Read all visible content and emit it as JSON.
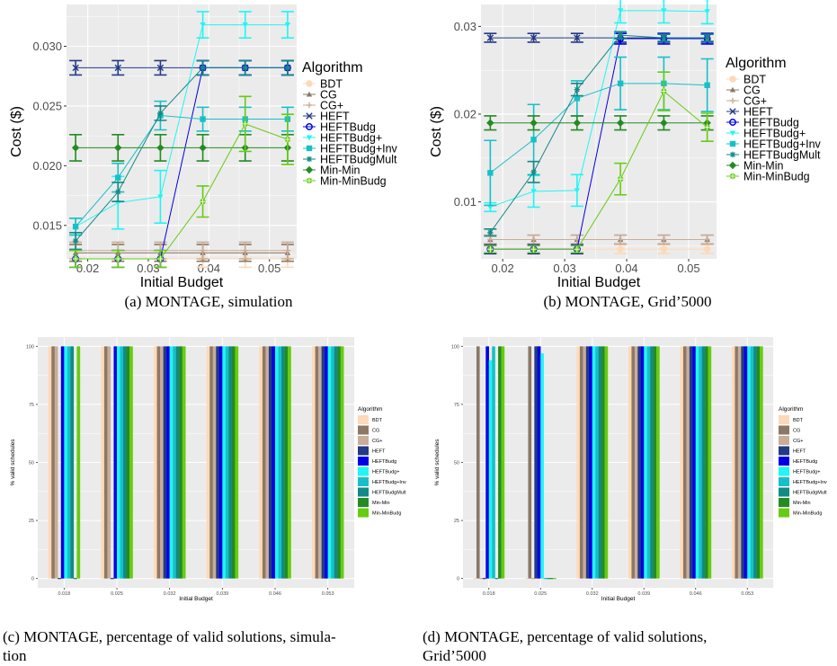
{
  "captions": {
    "a": "(a) MONTAGE, simulation",
    "b": "(b) MONTAGE, Grid’5000",
    "c_line1": "(c) MONTAGE, percentage of valid solutions, simula-",
    "c_line2": "tion",
    "d_line1": "(d)  MONTAGE,  percentage  of  valid  solutions,",
    "d_line2": "Grid’5000"
  },
  "colors": {
    "BDT": "#fdd9b9",
    "CG": "#8c7866",
    "CG+": "#c8ad98",
    "HEFT": "#243a85",
    "HEFTBudg": "#0000e6",
    "HEFTBudg+": "#22f5f5",
    "HEFTBudg+Inv": "#17c0c8",
    "HEFTBudgMult": "#128a86",
    "Min-Min": "#238b23",
    "Min-MinBudg": "#66cc11",
    "panel_bg": "#ebebeb",
    "grid": "#ffffff"
  },
  "chart_data": [
    {
      "id": "a",
      "type": "line",
      "xlabel": "Initial Budget",
      "ylabel": "Cost ($)",
      "xlim": [
        0.0165,
        0.0545
      ],
      "ylim": [
        0.0122,
        0.0335
      ],
      "xticks": [
        0.02,
        0.03,
        0.04,
        0.05
      ],
      "xtick_labels": [
        "0.02",
        "0.03",
        "0.04",
        "0.05"
      ],
      "yticks": [
        0.015,
        0.02,
        0.025,
        0.03
      ],
      "ytick_labels": [
        "0.015",
        "0.020",
        "0.025",
        "0.030"
      ],
      "legend_title": "Algorithm",
      "legend_position": "right",
      "x": [
        0.018,
        0.025,
        0.032,
        0.039,
        0.046,
        0.053
      ],
      "series": [
        {
          "name": "BDT",
          "values": [
            0.0122,
            0.0122,
            0.0122,
            0.0122,
            0.0122,
            0.0122
          ],
          "err": [
            0.0007,
            0.0007,
            0.0007,
            0.0007,
            0.0007,
            0.0007
          ]
        },
        {
          "name": "CG",
          "values": [
            0.0127,
            0.0127,
            0.0127,
            0.0127,
            0.0127,
            0.0127
          ],
          "err": [
            0.0007,
            0.0007,
            0.0007,
            0.0007,
            0.0007,
            0.0007
          ]
        },
        {
          "name": "CG+",
          "values": [
            0.0129,
            0.0129,
            0.0129,
            0.0129,
            0.0129,
            0.0129
          ],
          "err": [
            0.0007,
            0.0007,
            0.0007,
            0.0007,
            0.0007,
            0.0007
          ]
        },
        {
          "name": "HEFT",
          "values": [
            0.0282,
            0.0282,
            0.0282,
            0.0282,
            0.0282,
            0.0282
          ],
          "err": [
            0.0006,
            0.0006,
            0.0006,
            0.0006,
            0.0006,
            0.0006
          ]
        },
        {
          "name": "HEFTBudg",
          "values": [
            0.0122,
            0.0122,
            0.0122,
            0.0282,
            0.0282,
            0.0282
          ],
          "err": [
            0.0007,
            0.0007,
            0.0007,
            0.0006,
            0.0006,
            0.0006
          ]
        },
        {
          "name": "HEFTBudg+",
          "values": [
            0.0149,
            0.0169,
            0.0174,
            0.0318,
            0.0318,
            0.0318
          ],
          "err": [
            0.0007,
            0.0022,
            0.0022,
            0.0011,
            0.0011,
            0.0011
          ]
        },
        {
          "name": "HEFTBudg+Inv",
          "values": [
            0.0149,
            0.019,
            0.0242,
            0.0239,
            0.0239,
            0.0239
          ],
          "err": [
            0.0007,
            0.0012,
            0.0012,
            0.001,
            0.001,
            0.001
          ]
        },
        {
          "name": "HEFTBudgMult",
          "values": [
            0.0137,
            0.0178,
            0.0244,
            0.0282,
            0.0282,
            0.0282
          ],
          "err": [
            0.0007,
            0.0008,
            0.0006,
            0.0006,
            0.0006,
            0.0006
          ]
        },
        {
          "name": "Min-Min",
          "values": [
            0.0215,
            0.0215,
            0.0215,
            0.0215,
            0.0215,
            0.0215
          ],
          "err": [
            0.0011,
            0.0011,
            0.0011,
            0.0011,
            0.0011,
            0.0011
          ]
        },
        {
          "name": "Min-MinBudg",
          "values": [
            0.0122,
            0.0122,
            0.0122,
            0.017,
            0.0235,
            0.0222
          ],
          "err": [
            0.0007,
            0.0007,
            0.0007,
            0.0013,
            0.0023,
            0.0021
          ]
        }
      ]
    },
    {
      "id": "b",
      "type": "line",
      "xlabel": "Initial Budget",
      "ylabel": "Cost ($)",
      "xlim": [
        0.0165,
        0.0545
      ],
      "ylim": [
        0.0035,
        0.0325
      ],
      "xticks": [
        0.02,
        0.03,
        0.04,
        0.05
      ],
      "xtick_labels": [
        "0.02",
        "0.03",
        "0.04",
        "0.05"
      ],
      "yticks": [
        0.01,
        0.02,
        0.03
      ],
      "ytick_labels": [
        "0.01",
        "0.02",
        "0.03"
      ],
      "legend_title": "Algorithm",
      "legend_position": "right",
      "x": [
        0.018,
        0.025,
        0.032,
        0.039,
        0.046,
        0.053
      ],
      "series": [
        {
          "name": "BDT",
          "values": [
            0.0046,
            0.0046,
            0.0046,
            0.0046,
            0.0046,
            0.0046
          ],
          "err": [
            0.0005,
            0.0005,
            0.0005,
            0.0005,
            0.0005,
            0.0005
          ]
        },
        {
          "name": "CG",
          "values": [
            0.0057,
            0.0057,
            0.0057,
            0.0057,
            0.0057,
            0.0057
          ],
          "err": [
            0.0005,
            0.0005,
            0.0005,
            0.0005,
            0.0005,
            0.0005
          ]
        },
        {
          "name": "CG+",
          "values": [
            0.0057,
            0.0057,
            0.0057,
            0.0057,
            0.0057,
            0.0057
          ],
          "err": [
            0.0005,
            0.0005,
            0.0005,
            0.0005,
            0.0005,
            0.0005
          ]
        },
        {
          "name": "HEFT",
          "values": [
            0.0287,
            0.0287,
            0.0287,
            0.0287,
            0.0287,
            0.0287
          ],
          "err": [
            0.0005,
            0.0005,
            0.0005,
            0.0005,
            0.0005,
            0.0005
          ]
        },
        {
          "name": "HEFTBudg",
          "values": [
            0.0046,
            0.0046,
            0.0046,
            0.0286,
            0.0286,
            0.0286
          ],
          "err": [
            0.0005,
            0.0005,
            0.0005,
            0.0006,
            0.0006,
            0.0006
          ]
        },
        {
          "name": "HEFTBudg+",
          "values": [
            0.0094,
            0.0112,
            0.0113,
            0.0318,
            0.0318,
            0.0317
          ],
          "err": [
            0.0005,
            0.0018,
            0.0018,
            0.0014,
            0.0014,
            0.0014
          ]
        },
        {
          "name": "HEFTBudg+Inv",
          "values": [
            0.0133,
            0.0171,
            0.0218,
            0.0235,
            0.0235,
            0.0233
          ],
          "err": [
            0.0037,
            0.004,
            0.002,
            0.003,
            0.003,
            0.003
          ]
        },
        {
          "name": "HEFTBudgMult",
          "values": [
            0.0065,
            0.0134,
            0.0228,
            0.029,
            0.0287,
            0.0287
          ],
          "err": [
            0.0004,
            0.0012,
            0.0007,
            0.0004,
            0.0004,
            0.0004
          ]
        },
        {
          "name": "Min-Min",
          "values": [
            0.019,
            0.019,
            0.019,
            0.019,
            0.019,
            0.019
          ],
          "err": [
            0.0008,
            0.0008,
            0.0008,
            0.0008,
            0.0008,
            0.0008
          ]
        },
        {
          "name": "Min-MinBudg",
          "values": [
            0.0046,
            0.0046,
            0.0046,
            0.0126,
            0.0226,
            0.0185
          ],
          "err": [
            0.0004,
            0.0004,
            0.0004,
            0.0018,
            0.0022,
            0.0016
          ]
        }
      ]
    },
    {
      "id": "c",
      "type": "bar",
      "xlabel": "Initial Budget",
      "ylabel": "% valid schedules",
      "ylim": [
        -4,
        104
      ],
      "yticks": [
        0,
        25,
        50,
        75,
        100
      ],
      "ytick_labels": [
        "0",
        "25",
        "50",
        "75",
        "100"
      ],
      "categories": [
        "0.018",
        "0.025",
        "0.032",
        "0.039",
        "0.046",
        "0.053"
      ],
      "legend_title": "Algorithm",
      "legend_position": "right",
      "series": [
        {
          "name": "BDT",
          "values": [
            100,
            100,
            100,
            100,
            100,
            100
          ]
        },
        {
          "name": "CG",
          "values": [
            100,
            100,
            100,
            100,
            100,
            100
          ]
        },
        {
          "name": "CG+",
          "values": [
            100,
            100,
            100,
            100,
            100,
            100
          ]
        },
        {
          "name": "HEFT",
          "values": [
            0,
            0,
            100,
            100,
            100,
            100
          ]
        },
        {
          "name": "HEFTBudg",
          "values": [
            100,
            100,
            100,
            100,
            100,
            100
          ]
        },
        {
          "name": "HEFTBudg+",
          "values": [
            100,
            100,
            100,
            100,
            100,
            100
          ]
        },
        {
          "name": "HEFTBudg+Inv",
          "values": [
            100,
            100,
            100,
            100,
            100,
            100
          ]
        },
        {
          "name": "HEFTBudgMult",
          "values": [
            100,
            100,
            100,
            100,
            100,
            100
          ]
        },
        {
          "name": "Min-Min",
          "values": [
            0,
            100,
            100,
            100,
            100,
            100
          ]
        },
        {
          "name": "Min-MinBudg",
          "values": [
            100,
            100,
            100,
            100,
            100,
            100
          ]
        }
      ]
    },
    {
      "id": "d",
      "type": "bar",
      "xlabel": "Initial Budget",
      "ylabel": "% valid schedules",
      "ylim": [
        -4,
        104
      ],
      "yticks": [
        0,
        25,
        50,
        75,
        100
      ],
      "ytick_labels": [
        "0",
        "25",
        "50",
        "75",
        "100"
      ],
      "categories": [
        "0.018",
        "0.025",
        "0.032",
        "0.039",
        "0.046",
        "0.053"
      ],
      "legend_title": "Algorithm",
      "legend_position": "right",
      "series": [
        {
          "name": "BDT",
          "values": [
            0,
            0,
            100,
            100,
            100,
            100
          ]
        },
        {
          "name": "CG",
          "values": [
            100,
            100,
            100,
            100,
            100,
            100
          ]
        },
        {
          "name": "CG+",
          "values": [
            0,
            0,
            100,
            100,
            100,
            100
          ]
        },
        {
          "name": "HEFT",
          "values": [
            0,
            100,
            100,
            100,
            100,
            100
          ]
        },
        {
          "name": "HEFTBudg",
          "values": [
            100,
            100,
            100,
            100,
            100,
            100
          ]
        },
        {
          "name": "HEFTBudg+",
          "values": [
            94,
            97,
            100,
            100,
            100,
            100
          ]
        },
        {
          "name": "HEFTBudg+Inv",
          "values": [
            100,
            0,
            100,
            100,
            100,
            100
          ]
        },
        {
          "name": "HEFTBudgMult",
          "values": [
            0,
            0,
            100,
            100,
            100,
            100
          ]
        },
        {
          "name": "Min-Min",
          "values": [
            100,
            0,
            100,
            100,
            100,
            100
          ]
        },
        {
          "name": "Min-MinBudg",
          "values": [
            100,
            0,
            100,
            100,
            100,
            100
          ]
        }
      ]
    }
  ]
}
